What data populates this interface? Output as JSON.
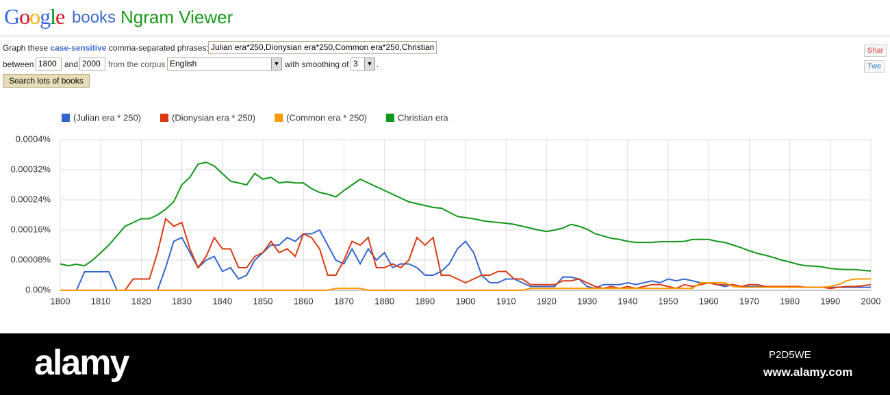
{
  "header": {
    "logo": "Google",
    "product": "books",
    "title": "Ngram Viewer"
  },
  "form": {
    "graph_these": "Graph these",
    "case_sensitive": "case-sensitive",
    "phrases_label": "comma-separated phrases:",
    "phrases": "Julian era*250,Dionysian era*250,Common era*250,Christian",
    "between": "between",
    "start_year": "1800",
    "and": "and",
    "end_year": "2000",
    "corpus_label": "from the corpus",
    "corpus": "English",
    "smoothing_label": "with smoothing of",
    "smoothing": "3",
    "period": ".",
    "button": "Search lots of books"
  },
  "share": {
    "gplus": "Shar",
    "twitter": "Twe"
  },
  "watermark": {
    "brand": "alamy",
    "id": "P2D5WE",
    "url": "www.alamy.com"
  },
  "chart_data": {
    "type": "line",
    "x": [
      1800,
      1802,
      1804,
      1806,
      1808,
      1810,
      1812,
      1814,
      1816,
      1818,
      1820,
      1822,
      1824,
      1826,
      1828,
      1830,
      1832,
      1834,
      1836,
      1838,
      1840,
      1842,
      1844,
      1846,
      1848,
      1850,
      1852,
      1854,
      1856,
      1858,
      1860,
      1862,
      1864,
      1866,
      1868,
      1870,
      1872,
      1874,
      1876,
      1878,
      1880,
      1882,
      1884,
      1886,
      1888,
      1890,
      1892,
      1894,
      1896,
      1898,
      1900,
      1902,
      1904,
      1906,
      1908,
      1910,
      1912,
      1914,
      1916,
      1918,
      1920,
      1922,
      1924,
      1926,
      1928,
      1930,
      1932,
      1934,
      1936,
      1938,
      1940,
      1942,
      1944,
      1946,
      1948,
      1950,
      1952,
      1954,
      1956,
      1958,
      1960,
      1962,
      1964,
      1966,
      1968,
      1970,
      1972,
      1974,
      1976,
      1978,
      1980,
      1982,
      1984,
      1986,
      1988,
      1990,
      1992,
      1994,
      1996,
      1998,
      2000
    ],
    "xlim": [
      1800,
      2000
    ],
    "xticks": [
      1800,
      1810,
      1820,
      1830,
      1840,
      1850,
      1860,
      1870,
      1880,
      1890,
      1900,
      1910,
      1920,
      1930,
      1940,
      1950,
      1960,
      1970,
      1980,
      1990,
      2000
    ],
    "ylim": [
      0,
      0.0004
    ],
    "yticks": [
      {
        "value": 0,
        "label": "0.00%"
      },
      {
        "value": 8e-05,
        "label": "0.00008%"
      },
      {
        "value": 0.00016,
        "label": "0.00016%"
      },
      {
        "value": 0.00024,
        "label": "0.00024%"
      },
      {
        "value": 0.00032,
        "label": "0.00032%"
      },
      {
        "value": 0.0004,
        "label": "0.0004%"
      }
    ],
    "grid": true,
    "legend": "top",
    "series": [
      {
        "name": "(Julian era * 250)",
        "color": "#3366cc",
        "values": [
          0,
          0,
          0,
          4.9e-05,
          4.9e-05,
          4.9e-05,
          4.9e-05,
          0,
          0,
          0,
          0,
          0,
          0,
          6e-05,
          0.00013,
          0.00014,
          0.0001,
          6e-05,
          8e-05,
          9e-05,
          5e-05,
          6e-05,
          3e-05,
          4e-05,
          8e-05,
          0.0001,
          0.00012,
          0.00012,
          0.00014,
          0.00013,
          0.00015,
          0.00015,
          0.00016,
          0.00012,
          8e-05,
          7e-05,
          0.00011,
          7e-05,
          0.00011,
          8e-05,
          0.0001,
          6e-05,
          7e-05,
          7e-05,
          6e-05,
          4e-05,
          4e-05,
          5e-05,
          7e-05,
          0.00011,
          0.00013,
          0.0001,
          4e-05,
          2e-05,
          2e-05,
          3e-05,
          3e-05,
          2e-05,
          1e-05,
          1e-05,
          1e-05,
          1e-05,
          3.5e-05,
          3.5e-05,
          3e-05,
          1e-05,
          5e-06,
          1.5e-05,
          1.5e-05,
          1.5e-05,
          2e-05,
          1.5e-05,
          2e-05,
          2.5e-05,
          2e-05,
          3e-05,
          2.5e-05,
          3e-05,
          2.5e-05,
          2e-05,
          2e-05,
          1.5e-05,
          1e-05,
          1.5e-05,
          1e-05,
          1e-05,
          1e-05,
          1e-05,
          1e-05,
          1e-05,
          1e-05,
          8e-06,
          8e-06,
          8e-06,
          8e-06,
          8e-06,
          8e-06,
          8e-06,
          8e-06,
          8e-06,
          8e-06
        ]
      },
      {
        "name": "(Dionysian era * 250)",
        "color": "#dc3912",
        "values": [
          0,
          0,
          0,
          0,
          0,
          0,
          0,
          0,
          0,
          3e-05,
          3e-05,
          3e-05,
          0.0001,
          0.00019,
          0.00017,
          0.00018,
          0.00011,
          6e-05,
          9e-05,
          0.00014,
          0.00011,
          0.00011,
          6e-05,
          6e-05,
          9e-05,
          0.0001,
          0.00013,
          0.0001,
          0.00011,
          9e-05,
          0.00015,
          0.00014,
          0.00011,
          4e-05,
          4e-05,
          8e-05,
          0.00013,
          0.00012,
          0.00014,
          6e-05,
          6e-05,
          7e-05,
          6e-05,
          8e-05,
          0.00014,
          0.00012,
          0.00014,
          4e-05,
          4e-05,
          3e-05,
          2e-05,
          3e-05,
          4e-05,
          4e-05,
          5e-05,
          5e-05,
          3e-05,
          3e-05,
          1.5e-05,
          1.5e-05,
          1.5e-05,
          1.5e-05,
          2.5e-05,
          2.5e-05,
          3e-05,
          2e-05,
          1e-05,
          5e-06,
          1e-05,
          5e-06,
          1e-05,
          5e-06,
          1e-05,
          1.5e-05,
          1.5e-05,
          1e-05,
          5e-06,
          1.5e-05,
          1e-05,
          1.5e-05,
          2e-05,
          1.5e-05,
          1.5e-05,
          1.5e-05,
          1e-05,
          1.5e-05,
          1.5e-05,
          1e-05,
          1e-05,
          1e-05,
          1e-05,
          1e-05,
          8e-06,
          8e-06,
          8e-06,
          5e-06,
          8e-06,
          1e-05,
          1e-05,
          1.2e-05,
          1.5e-05
        ]
      },
      {
        "name": "(Common era * 250)",
        "color": "#ff9900",
        "values": [
          0,
          0,
          0,
          0,
          0,
          0,
          0,
          0,
          0,
          0,
          0,
          0,
          0,
          0,
          0,
          0,
          0,
          0,
          0,
          0,
          0,
          0,
          0,
          0,
          0,
          0,
          0,
          0,
          0,
          0,
          0,
          0,
          0,
          0,
          5e-06,
          5e-06,
          5e-06,
          5e-06,
          0,
          0,
          0,
          0,
          0,
          0,
          0,
          0,
          0,
          0,
          0,
          0,
          0,
          0,
          0,
          0,
          0,
          0,
          0,
          0,
          5e-06,
          5e-06,
          5e-06,
          5e-06,
          5e-06,
          5e-06,
          5e-06,
          5e-06,
          5e-06,
          5e-06,
          5e-06,
          5e-06,
          5e-06,
          5e-06,
          5e-06,
          5e-06,
          5e-06,
          5e-06,
          5e-06,
          5e-06,
          5e-06,
          2e-05,
          2e-05,
          2e-05,
          2e-05,
          1e-05,
          8e-06,
          8e-06,
          8e-06,
          8e-06,
          8e-06,
          8e-06,
          8e-06,
          8e-06,
          8e-06,
          8e-06,
          8e-06,
          1e-05,
          1.5e-05,
          2.5e-05,
          3e-05,
          3e-05,
          3e-05
        ]
      },
      {
        "name": "Christian era",
        "color": "#109618",
        "values": [
          7e-05,
          6.5e-05,
          6.9e-05,
          6.5e-05,
          8e-05,
          0.0001,
          0.00012,
          0.000145,
          0.00017,
          0.00018,
          0.00019,
          0.00019,
          0.0002,
          0.000215,
          0.000235,
          0.00028,
          0.0003,
          0.000335,
          0.00034,
          0.00033,
          0.00031,
          0.00029,
          0.000285,
          0.00028,
          0.00031,
          0.000295,
          0.0003,
          0.000285,
          0.000288,
          0.000285,
          0.000285,
          0.00027,
          0.00026,
          0.000255,
          0.000248,
          0.000265,
          0.00028,
          0.000295,
          0.000285,
          0.000275,
          0.000265,
          0.000255,
          0.000245,
          0.000235,
          0.00023,
          0.000225,
          0.00022,
          0.000218,
          0.000207,
          0.000196,
          0.000193,
          0.00019,
          0.000185,
          0.000182,
          0.00018,
          0.000178,
          0.000175,
          0.00017,
          0.000165,
          0.00016,
          0.000156,
          0.00016,
          0.000165,
          0.000175,
          0.00017,
          0.000162,
          0.00015,
          0.000144,
          0.000138,
          0.000135,
          0.00013,
          0.000127,
          0.000127,
          0.000127,
          0.000129,
          0.000129,
          0.000129,
          0.00013,
          0.000135,
          0.000135,
          0.000135,
          0.00013,
          0.000127,
          0.00012,
          0.000113,
          0.000105,
          9.8e-05,
          9.3e-05,
          8.7e-05,
          8e-05,
          7.5e-05,
          6.9e-05,
          6.5e-05,
          6.4e-05,
          6.2e-05,
          5.8e-05,
          5.6e-05,
          5.5e-05,
          5.5e-05,
          5.3e-05,
          5.1e-05
        ]
      }
    ]
  }
}
